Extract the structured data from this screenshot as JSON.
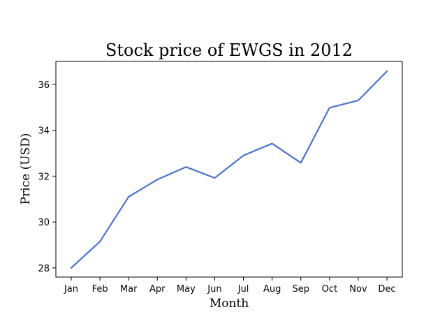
{
  "chart_data": {
    "type": "line",
    "title": "Stock price of EWGS in 2012",
    "xlabel": "Month",
    "ylabel": "Price (USD)",
    "categories": [
      "Jan",
      "Feb",
      "Mar",
      "Apr",
      "May",
      "Jun",
      "Jul",
      "Aug",
      "Sep",
      "Oct",
      "Nov",
      "Dec"
    ],
    "series": [
      {
        "values": [
          28.0,
          29.15,
          31.1,
          31.85,
          32.4,
          31.92,
          32.9,
          33.42,
          32.58,
          34.98,
          35.3,
          36.57
        ],
        "color": "#4C72D0"
      }
    ],
    "ylim": [
      27.6,
      37.0
    ],
    "yticks": [
      28,
      30,
      32,
      34,
      36
    ],
    "grid": false,
    "legend": false
  }
}
